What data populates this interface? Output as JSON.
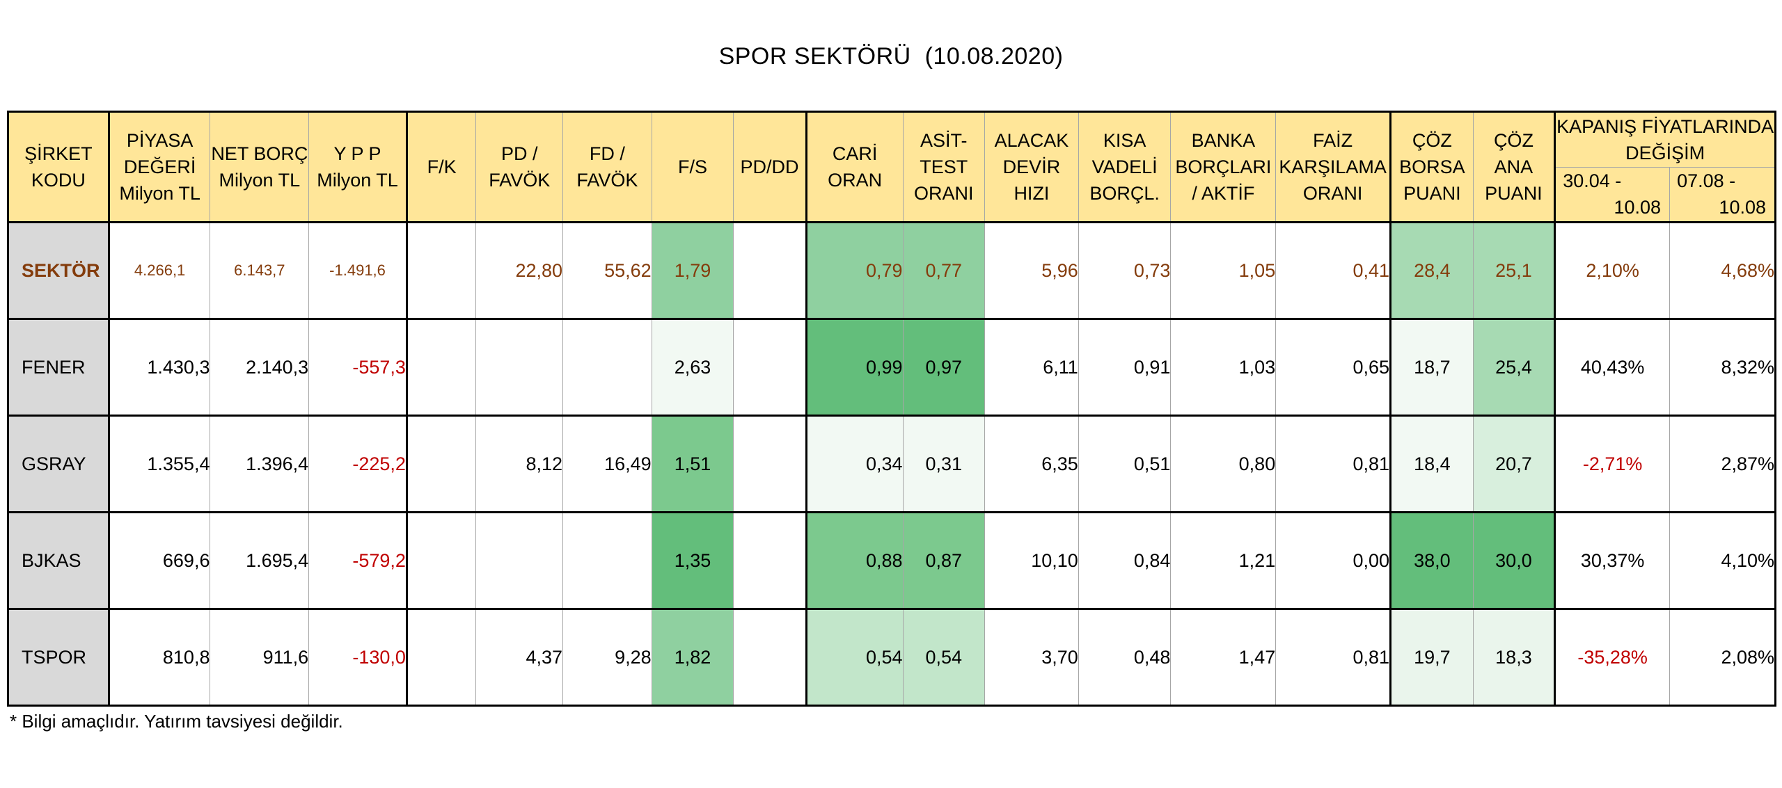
{
  "title": "SPOR SEKTÖRÜ  (10.08.2020)",
  "note": "* Bilgi amaçlıdır. Yatırım tavsiyesi değildir.",
  "headers": {
    "sirket": [
      "ŞİRKET",
      "KODU"
    ],
    "piyasa": [
      "PİYASA",
      "DEĞERİ",
      "Milyon TL"
    ],
    "netborc": [
      "NET BORÇ",
      "Milyon TL"
    ],
    "ypp": [
      "Y P P",
      "Milyon TL"
    ],
    "fk": "F/K",
    "pdfavok": [
      "PD /",
      "FAVÖK"
    ],
    "fdfavok": [
      "FD /",
      "FAVÖK"
    ],
    "fs": "F/S",
    "pddd": "PD/DD",
    "cari": [
      "CARİ",
      "ORAN"
    ],
    "asit": [
      "ASİT-",
      "TEST",
      "ORANI"
    ],
    "alacak": [
      "ALACAK",
      "DEVİR",
      "HIZI"
    ],
    "kisa": [
      "KISA",
      "VADELİ",
      "BORÇL."
    ],
    "banka": [
      "BANKA",
      "BORÇLARI",
      "/ AKTİF"
    ],
    "faiz": [
      "FAİZ",
      "KARŞILAMA",
      "ORANI"
    ],
    "cozborsa": [
      "ÇÖZ",
      "BORSA",
      "PUANI"
    ],
    "cozana": [
      "ÇÖZ",
      "ANA",
      "PUANI"
    ],
    "kapanis": [
      "KAPANIŞ FİYATLARINDA",
      "DEĞİŞİM"
    ],
    "p1": [
      "30.04 -",
      "10.08"
    ],
    "p2": [
      "07.08 -",
      "10.08"
    ]
  },
  "rows": [
    {
      "code": "SEKTÖR",
      "piyasa": "4.266,1",
      "netborc": "6.143,7",
      "ypp": "-1.491,6",
      "fk": "",
      "pdfavok": "22,80",
      "fdfavok": "55,62",
      "fs": "1,79",
      "pddd": "",
      "cari": "0,79",
      "asit": "0,77",
      "alacak": "5,96",
      "kisa": "0,73",
      "banka": "1,05",
      "faiz": "0,41",
      "cozborsa": "28,4",
      "cozana": "25,1",
      "p1": "2,10%",
      "p2": "4,68%"
    },
    {
      "code": "FENER",
      "piyasa": "1.430,3",
      "netborc": "2.140,3",
      "ypp": "-557,3",
      "fk": "",
      "pdfavok": "",
      "fdfavok": "",
      "fs": "2,63",
      "pddd": "",
      "cari": "0,99",
      "asit": "0,97",
      "alacak": "6,11",
      "kisa": "0,91",
      "banka": "1,03",
      "faiz": "0,65",
      "cozborsa": "18,7",
      "cozana": "25,4",
      "p1": "40,43%",
      "p2": "8,32%"
    },
    {
      "code": "GSRAY",
      "piyasa": "1.355,4",
      "netborc": "1.396,4",
      "ypp": "-225,2",
      "fk": "",
      "pdfavok": "8,12",
      "fdfavok": "16,49",
      "fs": "1,51",
      "pddd": "",
      "cari": "0,34",
      "asit": "0,31",
      "alacak": "6,35",
      "kisa": "0,51",
      "banka": "0,80",
      "faiz": "0,81",
      "cozborsa": "18,4",
      "cozana": "20,7",
      "p1": "-2,71%",
      "p2": "2,87%"
    },
    {
      "code": "BJKAS",
      "piyasa": "669,6",
      "netborc": "1.695,4",
      "ypp": "-579,2",
      "fk": "",
      "pdfavok": "",
      "fdfavok": "",
      "fs": "1,35",
      "pddd": "",
      "cari": "0,88",
      "asit": "0,87",
      "alacak": "10,10",
      "kisa": "0,84",
      "banka": "1,21",
      "faiz": "0,00",
      "cozborsa": "38,0",
      "cozana": "30,0",
      "p1": "30,37%",
      "p2": "4,10%"
    },
    {
      "code": "TSPOR",
      "piyasa": "810,8",
      "netborc": "911,6",
      "ypp": "-130,0",
      "fk": "",
      "pdfavok": "4,37",
      "fdfavok": "9,28",
      "fs": "1,82",
      "pddd": "",
      "cari": "0,54",
      "asit": "0,54",
      "alacak": "3,70",
      "kisa": "0,48",
      "banka": "1,47",
      "faiz": "0,81",
      "cozborsa": "19,7",
      "cozana": "18,3",
      "p1": "-35,28%",
      "p2": "2,08%"
    }
  ],
  "colors": {
    "header_bg": "#ffe699",
    "code_bg": "#d9d9d9",
    "sector_text": "#843c0c",
    "negative_text": "#c00000",
    "heat_green_strong": "#63be7b",
    "heat_green_light": "#f2f9f3"
  }
}
